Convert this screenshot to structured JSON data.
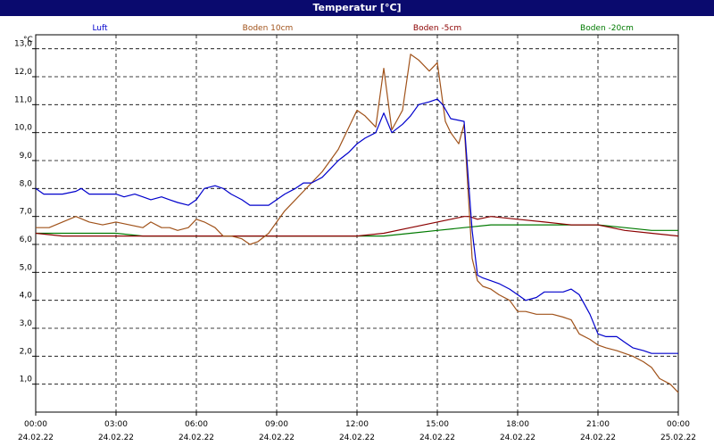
{
  "window": {
    "title": "Temperatur [°C]"
  },
  "chart_data": {
    "type": "line",
    "title": "Temperatur [°C]",
    "ylabel": "°C",
    "xlabel": "",
    "ylim": [
      0,
      13.5
    ],
    "xlim_hours": [
      0,
      24
    ],
    "grid": true,
    "legend_position": "top",
    "y_ticks": [
      "1,0",
      "2,0",
      "3,0",
      "4,0",
      "5,0",
      "6,0",
      "7,0",
      "8,0",
      "9,0",
      "10,0",
      "11,0",
      "12,0",
      "13,0"
    ],
    "x_ticks": [
      {
        "time": "00:00",
        "date": "24.02.22"
      },
      {
        "time": "03:00",
        "date": "24.02.22"
      },
      {
        "time": "06:00",
        "date": "24.02.22"
      },
      {
        "time": "09:00",
        "date": "24.02.22"
      },
      {
        "time": "12:00",
        "date": "24.02.22"
      },
      {
        "time": "15:00",
        "date": "24.02.22"
      },
      {
        "time": "18:00",
        "date": "24.02.22"
      },
      {
        "time": "21:00",
        "date": "24.02.22"
      },
      {
        "time": "00:00",
        "date": "25.02.22"
      }
    ],
    "series": [
      {
        "name": "Luft",
        "color": "#0000cc",
        "x": [
          0,
          0.3,
          1,
          1.5,
          1.7,
          2,
          3,
          3.3,
          3.7,
          4,
          4.3,
          4.7,
          5,
          5.3,
          5.7,
          6,
          6.3,
          6.7,
          7,
          7.3,
          7.7,
          8,
          8.3,
          8.7,
          9,
          9.3,
          9.7,
          10,
          10.3,
          10.7,
          11,
          11.3,
          11.7,
          12,
          12.3,
          12.7,
          13,
          13.3,
          13.7,
          14,
          14.3,
          14.7,
          15,
          15.2,
          15.5,
          16,
          16.3,
          16.5,
          16.7,
          17,
          17.3,
          17.7,
          18,
          18.3,
          18.7,
          19,
          19.3,
          19.7,
          20,
          20.3,
          20.7,
          21,
          21.3,
          21.7,
          22,
          22.3,
          22.7,
          23,
          23.3,
          23.7,
          24
        ],
        "y": [
          8.0,
          7.8,
          7.8,
          7.9,
          8.0,
          7.8,
          7.8,
          7.7,
          7.8,
          7.7,
          7.6,
          7.7,
          7.6,
          7.5,
          7.4,
          7.6,
          8.0,
          8.1,
          8.0,
          7.8,
          7.6,
          7.4,
          7.4,
          7.4,
          7.6,
          7.8,
          8.0,
          8.2,
          8.2,
          8.4,
          8.7,
          9.0,
          9.3,
          9.6,
          9.8,
          10.0,
          10.7,
          10.0,
          10.3,
          10.6,
          11.0,
          11.1,
          11.2,
          11.0,
          10.5,
          10.4,
          6.5,
          4.9,
          4.8,
          4.7,
          4.6,
          4.4,
          4.2,
          4.0,
          4.1,
          4.3,
          4.3,
          4.3,
          4.4,
          4.2,
          3.5,
          2.8,
          2.7,
          2.7,
          2.5,
          2.3,
          2.2,
          2.1,
          2.1,
          2.1,
          2.1
        ]
      },
      {
        "name": "Boden 10cm",
        "color": "#a0521a",
        "x": [
          0,
          0.5,
          1,
          1.5,
          2,
          2.5,
          3,
          3.5,
          4,
          4.3,
          4.7,
          5,
          5.3,
          5.7,
          6,
          6.3,
          6.7,
          7,
          7.3,
          7.7,
          8,
          8.3,
          8.7,
          9,
          9.3,
          9.7,
          10,
          10.3,
          10.7,
          11,
          11.3,
          11.7,
          12,
          12.3,
          12.7,
          13,
          13.3,
          13.7,
          14,
          14.3,
          14.7,
          15,
          15.3,
          15.5,
          15.8,
          16,
          16.3,
          16.5,
          16.7,
          17,
          17.3,
          17.7,
          18,
          18.3,
          18.7,
          19,
          19.3,
          19.7,
          20,
          20.3,
          20.7,
          21,
          21.3,
          21.7,
          22,
          22.3,
          22.7,
          23,
          23.3,
          23.7,
          24
        ],
        "y": [
          6.6,
          6.6,
          6.8,
          7.0,
          6.8,
          6.7,
          6.8,
          6.7,
          6.6,
          6.8,
          6.6,
          6.6,
          6.5,
          6.6,
          6.9,
          6.8,
          6.6,
          6.3,
          6.3,
          6.2,
          6.0,
          6.1,
          6.4,
          6.8,
          7.2,
          7.6,
          7.9,
          8.2,
          8.6,
          9.0,
          9.4,
          10.2,
          10.8,
          10.6,
          10.2,
          12.3,
          10.1,
          10.8,
          12.8,
          12.6,
          12.2,
          12.5,
          10.4,
          10.0,
          9.6,
          10.3,
          5.5,
          4.7,
          4.5,
          4.4,
          4.2,
          4.0,
          3.6,
          3.6,
          3.5,
          3.5,
          3.5,
          3.4,
          3.3,
          2.8,
          2.6,
          2.4,
          2.3,
          2.2,
          2.1,
          2.0,
          1.8,
          1.6,
          1.2,
          1.0,
          0.7
        ]
      },
      {
        "name": "Boden -5cm",
        "color": "#8b0000",
        "x": [
          0,
          1,
          2,
          3,
          4,
          5,
          6,
          7,
          8,
          9,
          10,
          11,
          12,
          13,
          14,
          15,
          15.5,
          16,
          16.2,
          16.5,
          17,
          18,
          19,
          20,
          21,
          22,
          23,
          24
        ],
        "y": [
          6.4,
          6.3,
          6.3,
          6.3,
          6.3,
          6.3,
          6.3,
          6.3,
          6.3,
          6.3,
          6.3,
          6.3,
          6.3,
          6.4,
          6.6,
          6.8,
          6.9,
          7.0,
          7.0,
          6.9,
          7.0,
          6.9,
          6.8,
          6.7,
          6.7,
          6.5,
          6.4,
          6.3
        ]
      },
      {
        "name": "Boden -20cm",
        "color": "#007a00",
        "x": [
          0,
          1,
          2,
          3,
          4,
          5,
          6,
          7,
          8,
          9,
          10,
          11,
          12,
          13,
          14,
          15,
          16,
          17,
          18,
          19,
          20,
          21,
          22,
          23,
          24
        ],
        "y": [
          6.4,
          6.4,
          6.4,
          6.4,
          6.3,
          6.3,
          6.3,
          6.3,
          6.3,
          6.3,
          6.3,
          6.3,
          6.3,
          6.3,
          6.4,
          6.5,
          6.6,
          6.7,
          6.7,
          6.7,
          6.7,
          6.7,
          6.6,
          6.5,
          6.5
        ]
      }
    ]
  }
}
